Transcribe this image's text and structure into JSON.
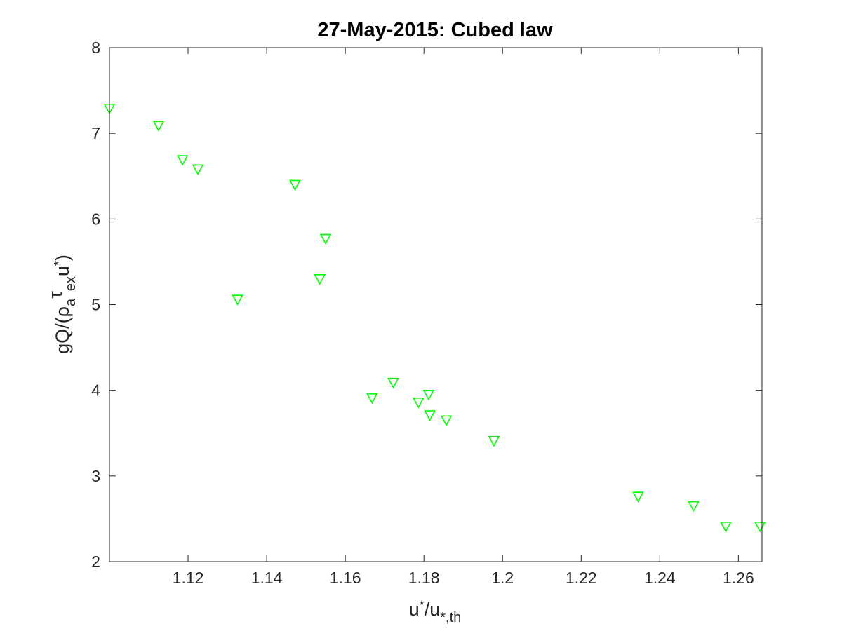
{
  "chart_data": {
    "type": "scatter",
    "title": "27-May-2015: Cubed law",
    "xlabel": {
      "base": "u",
      "sub1": "*",
      "slash": "/u",
      "sub2": "*,th"
    },
    "ylabel": {
      "prefix": "gQ/(",
      "rho": "ρ",
      "rho_sub": "a",
      "tau": "τ",
      "tau_sub": "ex",
      "u": "u",
      "u_sub": "*",
      "suffix": ")"
    },
    "xlim": [
      1.1,
      1.266
    ],
    "ylim": [
      2,
      8
    ],
    "xticks": [
      1.12,
      1.14,
      1.16,
      1.18,
      1.2,
      1.22,
      1.24,
      1.26
    ],
    "xtick_labels": [
      "1.12",
      "1.14",
      "1.16",
      "1.18",
      "1.2",
      "1.22",
      "1.24",
      "1.26"
    ],
    "yticks": [
      2,
      3,
      4,
      5,
      6,
      7,
      8
    ],
    "ytick_labels": [
      "2",
      "3",
      "4",
      "5",
      "6",
      "7",
      "8"
    ],
    "marker": "triangle-down",
    "marker_color": "#00ff00",
    "grid": false,
    "points": [
      {
        "x": 1.1,
        "y": 7.29
      },
      {
        "x": 1.1125,
        "y": 7.09
      },
      {
        "x": 1.1186,
        "y": 6.69
      },
      {
        "x": 1.1225,
        "y": 6.58
      },
      {
        "x": 1.1326,
        "y": 5.06
      },
      {
        "x": 1.1472,
        "y": 6.4
      },
      {
        "x": 1.1535,
        "y": 5.3
      },
      {
        "x": 1.155,
        "y": 5.77
      },
      {
        "x": 1.1668,
        "y": 3.91
      },
      {
        "x": 1.1722,
        "y": 4.09
      },
      {
        "x": 1.1786,
        "y": 3.86
      },
      {
        "x": 1.1812,
        "y": 3.95
      },
      {
        "x": 1.1815,
        "y": 3.71
      },
      {
        "x": 1.1857,
        "y": 3.65
      },
      {
        "x": 1.1978,
        "y": 3.41
      },
      {
        "x": 1.2345,
        "y": 2.76
      },
      {
        "x": 1.2486,
        "y": 2.65
      },
      {
        "x": 1.2568,
        "y": 2.41
      },
      {
        "x": 1.2655,
        "y": 2.41
      }
    ]
  }
}
